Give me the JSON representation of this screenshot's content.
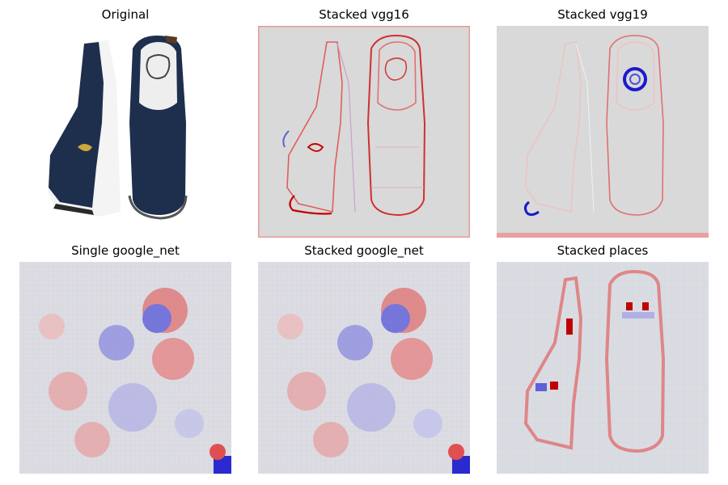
{
  "panels": [
    {
      "title": "Original"
    },
    {
      "title": "Stacked vgg16"
    },
    {
      "title": "Stacked vgg19"
    },
    {
      "title": "Single google_net"
    },
    {
      "title": "Stacked google_net"
    },
    {
      "title": "Stacked places"
    }
  ],
  "colors": {
    "background_gray": "#d9d9d9",
    "positive_red": "#d40000",
    "negative_blue": "#1a1acc",
    "shoe_navy": "#1e2f4d",
    "shoe_sole": "#f2f2f2"
  }
}
